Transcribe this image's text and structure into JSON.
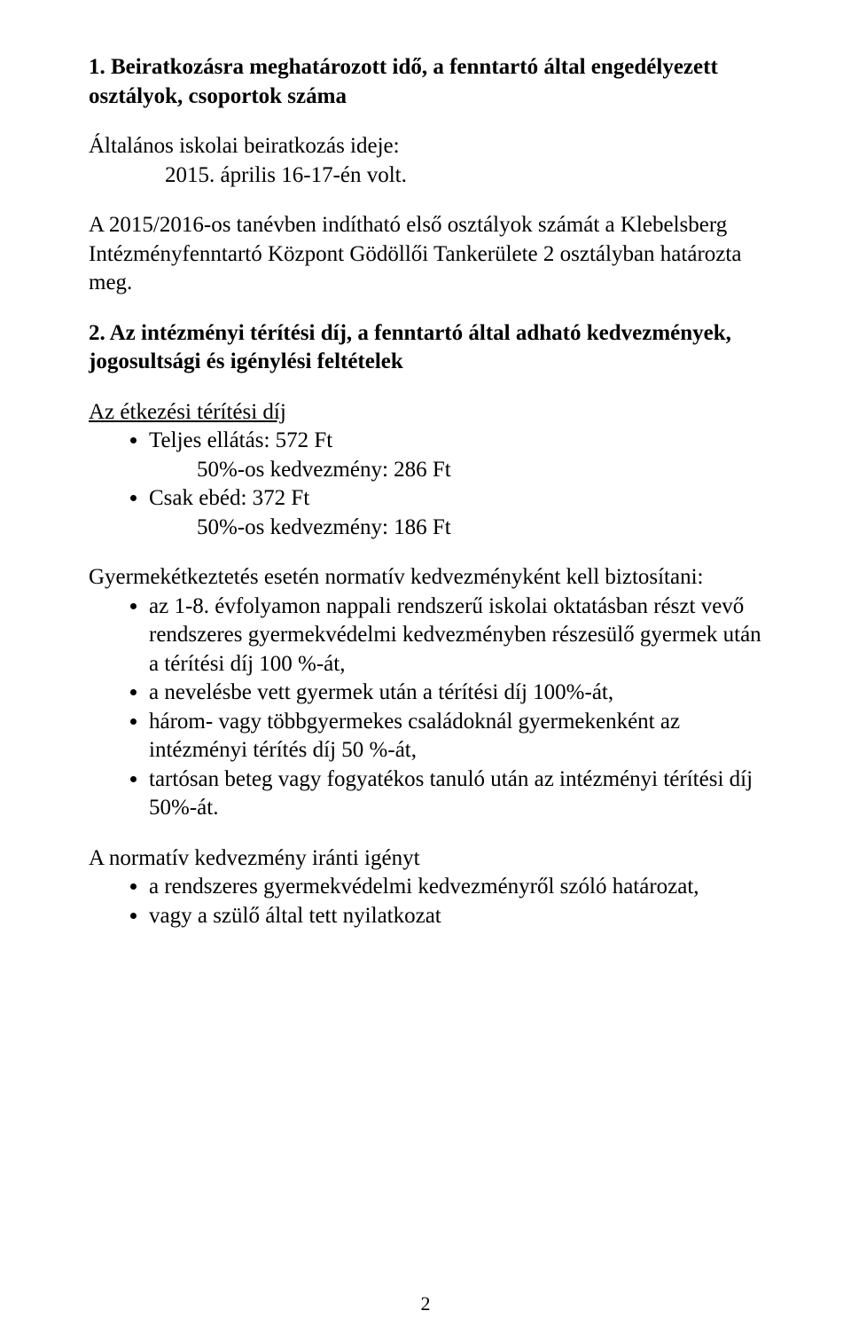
{
  "section1": {
    "heading": "1. Beiratkozásra meghatározott idő, a fenntartó által engedélyezett osztályok, csoportok száma",
    "line1": "Általános iskolai beiratkozás ideje:",
    "line2": "2015. április 16-17-én volt.",
    "para2": "A 2015/2016-os tanévben indítható első osztályok számát a Klebelsberg Intézményfenntartó Központ Gödöllői Tankerülete 2 osztályban határozta meg."
  },
  "section2": {
    "heading": "2. Az intézményi térítési díj, a fenntartó által adható kedvezmények, jogosultsági és igénylési feltételek",
    "fee_title": "Az étkezési térítési díj",
    "fees": [
      {
        "main": "Teljes ellátás: 572 Ft",
        "sub": "50%-os kedvezmény: 286 Ft"
      },
      {
        "main": "Csak ebéd: 372 Ft",
        "sub": "50%-os kedvezmény: 186 Ft"
      }
    ],
    "norm_title": "Gyermekétkeztetés esetén normatív kedvezményként kell biztosítani:",
    "norm_items": [
      "az 1-8. évfolyamon nappali rendszerű iskolai oktatásban részt vevő rendszeres gyermekvédelmi kedvezményben részesülő gyermek után a térítési díj 100 %-át,",
      "a nevelésbe vett gyermek után a térítési díj 100%-át,",
      "három- vagy többgyermekes családoknál gyermekenként az intézményi térítés díj 50 %-át,",
      "tartósan beteg vagy fogyatékos tanuló után az intézményi térítési díj 50%-át."
    ],
    "claim_title": "A normatív kedvezmény iránti igényt",
    "claim_items": [
      "a rendszeres gyermekvédelmi kedvezményről szóló határozat,",
      "vagy a szülő által tett nyilatkozat"
    ]
  },
  "page_number": "2"
}
